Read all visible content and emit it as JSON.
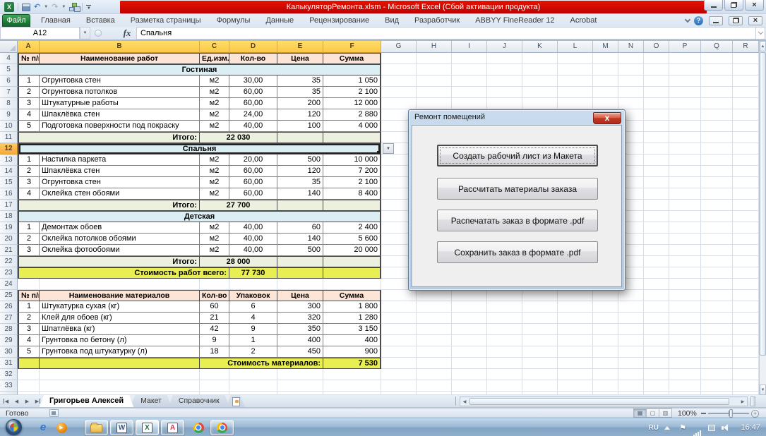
{
  "window": {
    "title": "КалькуляторРемонта.xlsm  -  Microsoft Excel (Сбой активации продукта)",
    "controls": [
      "minimize",
      "restore",
      "close"
    ]
  },
  "qat": {
    "icons": [
      "excel-logo",
      "save",
      "undo",
      "redo",
      "org-chart-macro",
      "customize-qat"
    ]
  },
  "ribbon": {
    "file_tab": "Файл",
    "tabs": [
      "Главная",
      "Вставка",
      "Разметка страницы",
      "Формулы",
      "Данные",
      "Рецензирование",
      "Вид",
      "Разработчик",
      "ABBYY FineReader 12",
      "Acrobat"
    ],
    "right_icons": [
      "collapse-ribbon",
      "help"
    ]
  },
  "formula_bar": {
    "name_box": "A12",
    "fx_label": "fx",
    "content": "Спальня"
  },
  "grid": {
    "col_headers": [
      "A",
      "B",
      "C",
      "D",
      "E",
      "F",
      "G",
      "H",
      "I",
      "J",
      "K",
      "L",
      "M",
      "N",
      "O",
      "P",
      "Q",
      "R"
    ],
    "selected_cols": [
      "A",
      "B",
      "C",
      "D",
      "E",
      "F"
    ],
    "selected_row": 12,
    "selected_cell": "A12",
    "rows": [
      {
        "n": 4,
        "type": "head",
        "cells": [
          "№ п/п",
          "Наименование работ",
          "Ед.изм.",
          "Кол-во",
          "Цена",
          "Сумма"
        ]
      },
      {
        "n": 5,
        "type": "section",
        "label": "Гостиная"
      },
      {
        "n": 6,
        "type": "item",
        "cells": [
          "1",
          "Огрунтовка стен",
          "м2",
          "30,00",
          "35",
          "1 050"
        ]
      },
      {
        "n": 7,
        "type": "item",
        "cells": [
          "2",
          "Огрунтовка потолков",
          "м2",
          "60,00",
          "35",
          "2 100"
        ]
      },
      {
        "n": 8,
        "type": "item",
        "cells": [
          "3",
          "Штукатурные работы",
          "м2",
          "60,00",
          "200",
          "12 000"
        ]
      },
      {
        "n": 9,
        "type": "item",
        "cells": [
          "4",
          "Шпаклёвка стен",
          "м2",
          "24,00",
          "120",
          "2 880"
        ]
      },
      {
        "n": 10,
        "type": "item",
        "cells": [
          "5",
          "Подготовка поверхности под покраску",
          "м2",
          "40,00",
          "100",
          "4 000"
        ]
      },
      {
        "n": 11,
        "type": "total",
        "label": "Итого:",
        "value": "22 030"
      },
      {
        "n": 12,
        "type": "section",
        "label": "Спальня",
        "selected": true
      },
      {
        "n": 13,
        "type": "item",
        "cells": [
          "1",
          "Настилка паркета",
          "м2",
          "20,00",
          "500",
          "10 000"
        ]
      },
      {
        "n": 14,
        "type": "item",
        "cells": [
          "2",
          "Шпаклёвка стен",
          "м2",
          "60,00",
          "120",
          "7 200"
        ]
      },
      {
        "n": 15,
        "type": "item",
        "cells": [
          "3",
          "Огрунтовка стен",
          "м2",
          "60,00",
          "35",
          "2 100"
        ]
      },
      {
        "n": 16,
        "type": "item",
        "cells": [
          "4",
          "Оклейка стен обоями",
          "м2",
          "60,00",
          "140",
          "8 400"
        ]
      },
      {
        "n": 17,
        "type": "total",
        "label": "Итого:",
        "value": "27 700"
      },
      {
        "n": 18,
        "type": "section",
        "label": "Детская"
      },
      {
        "n": 19,
        "type": "item",
        "cells": [
          "1",
          "Демонтаж обоев",
          "м2",
          "40,00",
          "60",
          "2 400"
        ]
      },
      {
        "n": 20,
        "type": "item",
        "cells": [
          "2",
          "Оклейка потолков обоями",
          "м2",
          "40,00",
          "140",
          "5 600"
        ]
      },
      {
        "n": 21,
        "type": "item",
        "cells": [
          "3",
          "Оклейка фотообоями",
          "м2",
          "40,00",
          "500",
          "20 000"
        ]
      },
      {
        "n": 22,
        "type": "total",
        "label": "Итого:",
        "value": "28 000"
      },
      {
        "n": 23,
        "type": "grand",
        "label": "Стоимость работ всего:",
        "value": "77 730"
      },
      {
        "n": 24,
        "type": "empty"
      },
      {
        "n": 25,
        "type": "head",
        "cells": [
          "№ п/п",
          "Наименование материалов",
          "Кол-во",
          "Упаковок",
          "Цена",
          "Сумма"
        ]
      },
      {
        "n": 26,
        "type": "item",
        "cells": [
          "1",
          "Штукатурка сухая (кг)",
          "60",
          "6",
          "300",
          "1 800"
        ]
      },
      {
        "n": 27,
        "type": "item",
        "cells": [
          "2",
          "Клей для обоев (кг)",
          "21",
          "4",
          "320",
          "1 280"
        ]
      },
      {
        "n": 28,
        "type": "item",
        "cells": [
          "3",
          "Шпатлёвка (кг)",
          "42",
          "9",
          "350",
          "3 150"
        ]
      },
      {
        "n": 29,
        "type": "item",
        "cells": [
          "4",
          "Грунтовка по бетону (л)",
          "9",
          "1",
          "400",
          "400"
        ]
      },
      {
        "n": 30,
        "type": "item",
        "cells": [
          "5",
          "Грунтовка под штукатурку (л)",
          "18",
          "2",
          "450",
          "900"
        ]
      },
      {
        "n": 31,
        "type": "mat",
        "label": "Стоимость материалов:",
        "value": "7 530"
      },
      {
        "n": 32,
        "type": "empty"
      },
      {
        "n": 33,
        "type": "empty"
      }
    ]
  },
  "dialog": {
    "title": "Ремонт помещений",
    "close_label": "x",
    "buttons": [
      {
        "label": "Создать рабочий лист из Макета",
        "default": true
      },
      {
        "label": "Рассчитать материалы заказа"
      },
      {
        "label": "Распечатать заказ в формате .pdf"
      },
      {
        "label": "Сохранить заказ в формате .pdf"
      }
    ]
  },
  "sheet_tabs": {
    "nav_icons": [
      "first-sheet",
      "prev-sheet",
      "next-sheet",
      "last-sheet"
    ],
    "tabs": [
      {
        "label": "Григорьев Алексей",
        "active": true
      },
      {
        "label": "Макет",
        "active": false
      },
      {
        "label": "Справочник",
        "active": false
      }
    ],
    "insert_icon": "insert-worksheet"
  },
  "status_bar": {
    "ready": "Готово",
    "view_icons": [
      "normal-view",
      "page-layout-view",
      "page-break-view"
    ],
    "zoom": "100%"
  },
  "taskbar": {
    "icons": [
      "start-orb",
      "internet-explorer",
      "media-player",
      "explorer-folder",
      "word",
      "excel",
      "abbyy",
      "chrome",
      "chrome-pinned"
    ],
    "active_icon": "excel",
    "tray": {
      "lang": "RU",
      "time": "16:47",
      "icons": [
        "show-hidden",
        "action-center-flag",
        "network-signal",
        "power",
        "volume"
      ]
    }
  }
}
